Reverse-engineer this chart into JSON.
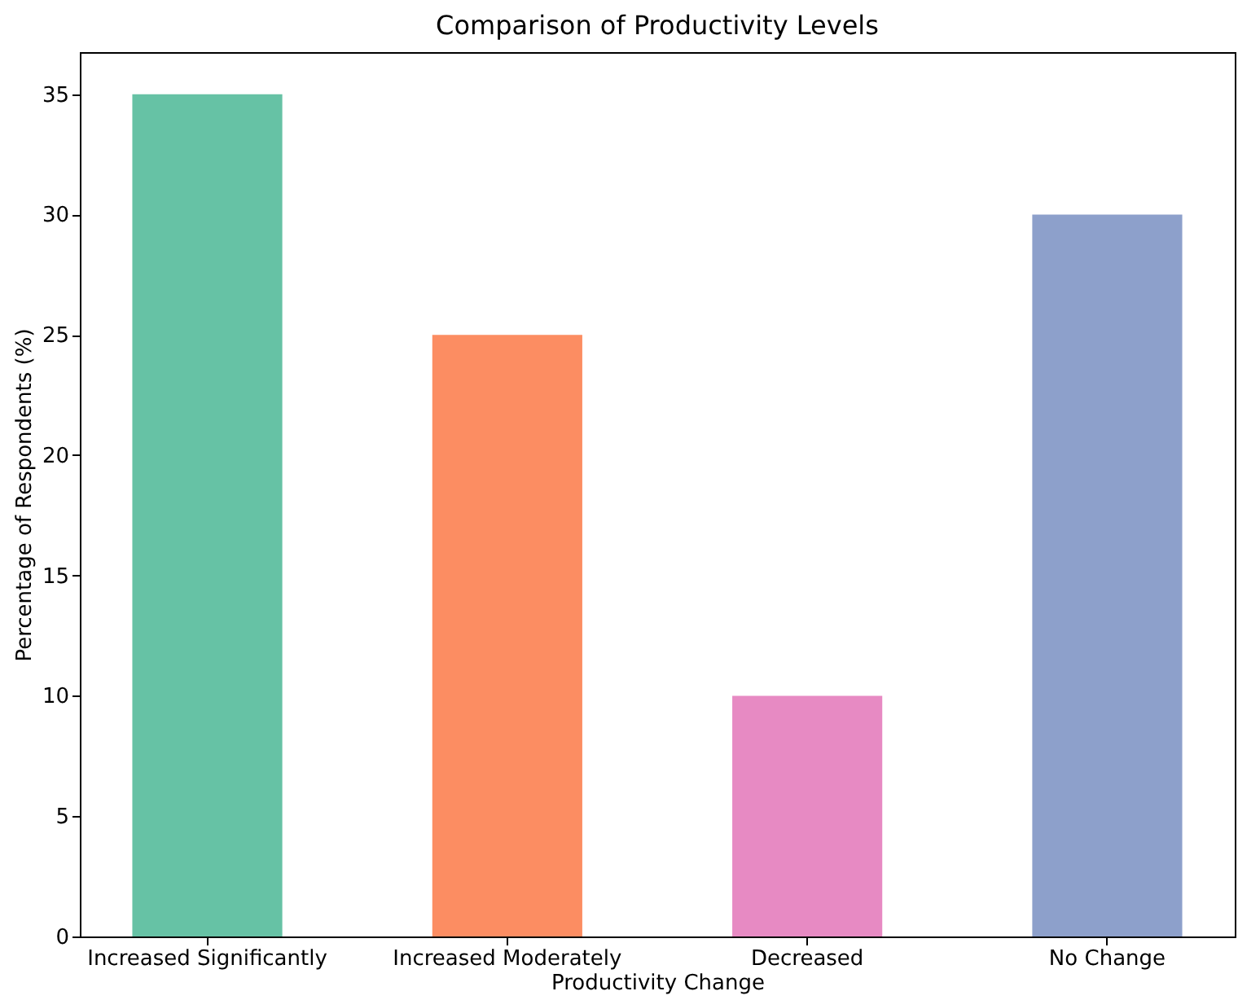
{
  "chart_data": {
    "type": "bar",
    "title": "Comparison of Productivity Levels",
    "xlabel": "Productivity Change",
    "ylabel": "Percentage of Respondents (%)",
    "categories": [
      "Increased Significantly",
      "Increased Moderately",
      "Decreased",
      "No Change"
    ],
    "values": [
      35,
      25,
      10,
      30
    ],
    "colors": [
      "#66c2a5",
      "#fc8d62",
      "#e78ac3",
      "#8da0cb"
    ],
    "ylim": [
      0,
      36.75
    ],
    "yticks": [
      0,
      5,
      10,
      15,
      20,
      25,
      30,
      35
    ],
    "grid": false,
    "legend": false
  }
}
